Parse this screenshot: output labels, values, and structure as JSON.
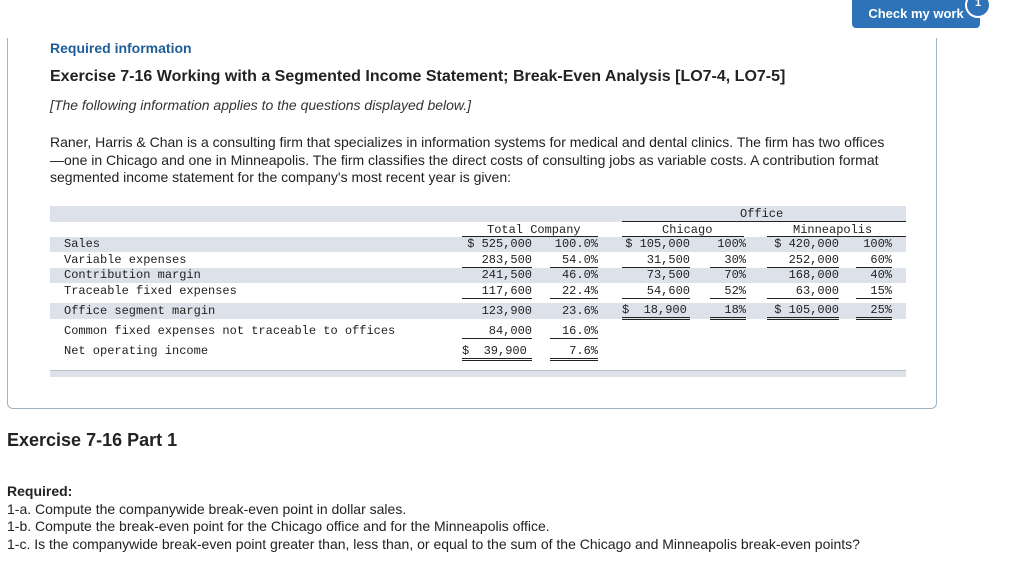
{
  "header": {
    "check_label": "Check my work",
    "badge_count": "1"
  },
  "required_info": "Required information",
  "exercise_title": "Exercise 7-16 Working with a Segmented Income Statement; Break-Even Analysis [LO7-4, LO7-5]",
  "exercise_note": "[The following information applies to the questions displayed below.]",
  "intro_text": "Raner, Harris & Chan is a consulting firm that specializes in information systems for medical and dental clinics. The firm has two offices—one in Chicago and one in Minneapolis. The firm classifies the direct costs of consulting jobs as variable costs. A contribution format segmented income statement for the company's most recent year is given:",
  "table": {
    "office_header": "Office",
    "col_total": "Total Company",
    "col_chicago": "Chicago",
    "col_minneapolis": "Minneapolis",
    "rows": [
      {
        "label": "Sales",
        "total": "$ 525,000",
        "total_pct": "100.0%",
        "chi": "$ 105,000",
        "chi_pct": "100%",
        "min": "$ 420,000",
        "min_pct": "100%"
      },
      {
        "label": "Variable expenses",
        "total": "283,500",
        "total_pct": "54.0%",
        "chi": "31,500",
        "chi_pct": "30%",
        "min": "252,000",
        "min_pct": "60%"
      },
      {
        "label": "Contribution margin",
        "total": "241,500",
        "total_pct": "46.0%",
        "chi": "73,500",
        "chi_pct": "70%",
        "min": "168,000",
        "min_pct": "40%"
      },
      {
        "label": "Traceable fixed expenses",
        "total": "117,600",
        "total_pct": "22.4%",
        "chi": "54,600",
        "chi_pct": "52%",
        "min": "63,000",
        "min_pct": "15%"
      },
      {
        "label": "Office segment margin",
        "total": "123,900",
        "total_pct": "23.6%",
        "chi": "$  18,900",
        "chi_pct": "18%",
        "min": "$ 105,000",
        "min_pct": "25%"
      },
      {
        "label": "Common fixed expenses not traceable to offices",
        "total": "84,000",
        "total_pct": "16.0%"
      },
      {
        "label": "Net operating income",
        "total": "$  39,900",
        "total_pct": "7.6%"
      }
    ]
  },
  "part_title": "Exercise 7-16 Part 1",
  "required": {
    "heading": "Required:",
    "items": [
      "1-a. Compute the companywide break-even point in dollar sales.",
      "1-b. Compute the break-even point for the Chicago office and for the Minneapolis office.",
      "1-c. Is the companywide break-even point greater than, less than, or equal to the sum of the Chicago and Minneapolis break-even points?"
    ]
  }
}
